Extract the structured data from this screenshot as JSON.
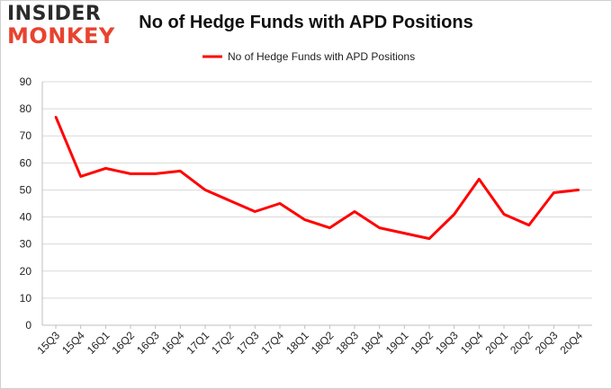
{
  "logo": {
    "line1": "INSIDER",
    "line2": "MONKEY"
  },
  "chart_data": {
    "type": "line",
    "title": "No of Hedge Funds with APD Positions",
    "xlabel": "",
    "ylabel": "",
    "categories": [
      "15Q3",
      "15Q4",
      "16Q1",
      "16Q2",
      "16Q3",
      "16Q4",
      "17Q1",
      "17Q2",
      "17Q3",
      "17Q4",
      "18Q1",
      "18Q2",
      "18Q3",
      "18Q4",
      "19Q1",
      "19Q2",
      "19Q3",
      "19Q4",
      "20Q1",
      "20Q2",
      "20Q3",
      "20Q4"
    ],
    "series": [
      {
        "name": "No of Hedge Funds with APD Positions",
        "values": [
          77,
          55,
          58,
          56,
          56,
          57,
          50,
          46,
          42,
          45,
          39,
          36,
          42,
          36,
          34,
          32,
          41,
          54,
          41,
          37,
          49,
          50
        ]
      }
    ],
    "ylim": [
      0,
      90
    ],
    "yticks": [
      0,
      10,
      20,
      30,
      40,
      50,
      60,
      70,
      80,
      90
    ],
    "grid": true,
    "legend": "top-center",
    "line_color": "#ff0000"
  }
}
